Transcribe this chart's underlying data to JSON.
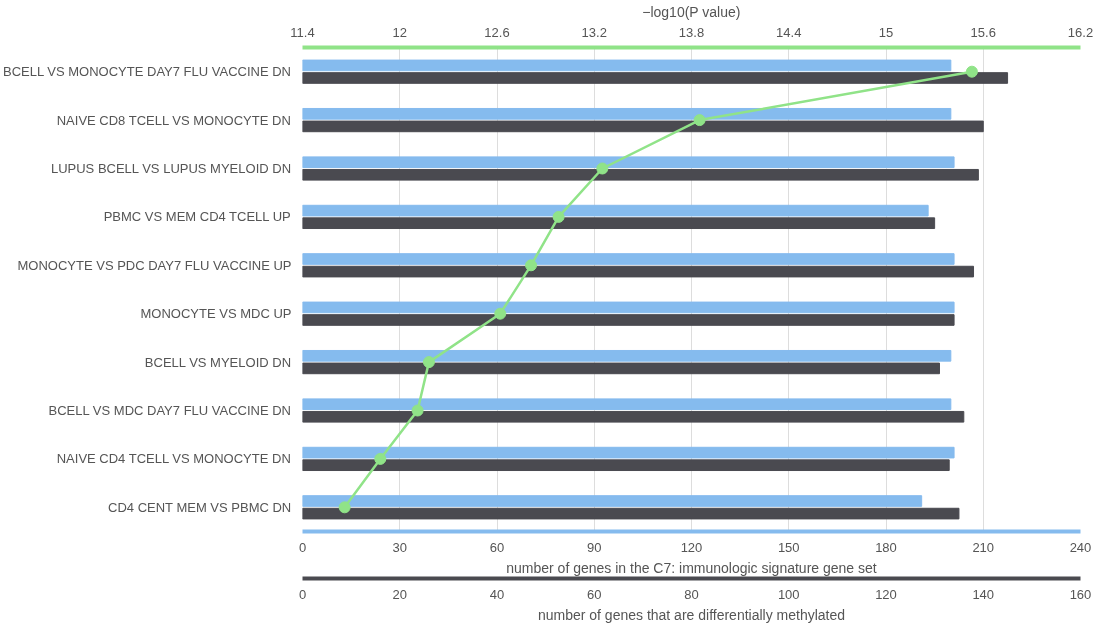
{
  "chart_data": [
    {
      "type": "bar",
      "orientation": "horizontal",
      "grid": "x",
      "categories": [
        "BCELL VS MONOCYTE DAY7 FLU VACCINE DN",
        "NAIVE CD8 TCELL VS MONOCYTE DN",
        "LUPUS BCELL VS LUPUS MYELOID DN",
        "PBMC VS MEM CD4 TCELL UP",
        "MONOCYTE VS PDC DAY7 FLU VACCINE UP",
        "MONOCYTE VS MDC UP",
        "BCELL VS MYELOID DN",
        "BCELL VS MDC DAY7 FLU VACCINE DN",
        "NAIVE CD4 TCELL VS MONOCYTE DN",
        "CD4 CENT MEM VS PBMC DN"
      ],
      "xlabel": "number of genes in the C7: immunologic signature gene set",
      "xlim": [
        0,
        240
      ],
      "xticks": [
        0,
        30,
        60,
        90,
        120,
        150,
        180,
        210,
        240
      ],
      "x2label": "number of genes that are differentially methylated",
      "x2lim": [
        0,
        160
      ],
      "x2ticks": [
        0,
        20,
        40,
        60,
        80,
        100,
        120,
        140,
        160
      ],
      "series": [
        {
          "color": "#85bbee",
          "values": [
            200,
            200,
            201,
            193,
            201,
            201,
            200,
            200,
            201,
            191
          ]
        },
        {
          "axis": "x2",
          "color": "#4a4a50",
          "values": [
            145,
            140,
            139,
            130,
            138,
            134,
            131,
            136,
            133,
            135
          ]
        }
      ]
    },
    {
      "type": "line",
      "orientation": "horizontal",
      "marker": "circle",
      "line_style": "solid",
      "categories": [
        null,
        null,
        null,
        null,
        null,
        null,
        null,
        null,
        null,
        null
      ],
      "xlabel": "−log10(P value)",
      "xlim": [
        11.4,
        16.2
      ],
      "xticks": [
        11.4,
        12,
        12.6,
        13.2,
        13.8,
        14.4,
        15,
        15.6,
        16.2
      ],
      "series": [
        {
          "color": "#90e388",
          "values": [
            15.53,
            13.85,
            13.25,
            12.98,
            12.81,
            12.62,
            12.18,
            12.11,
            11.88,
            11.66
          ]
        }
      ]
    }
  ]
}
